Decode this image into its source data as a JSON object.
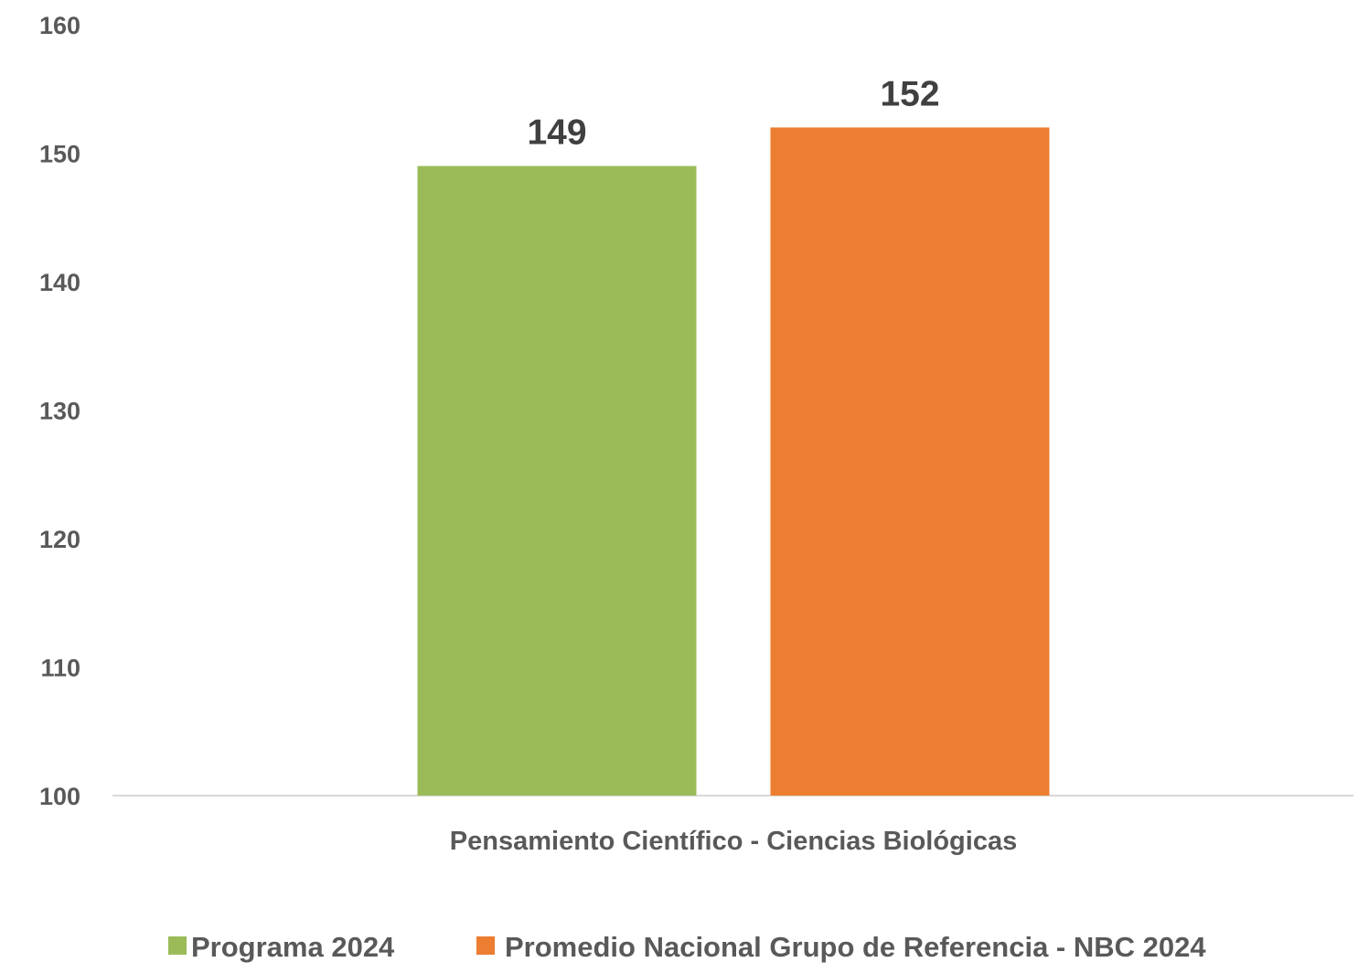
{
  "chart_data": {
    "type": "bar",
    "categories": [
      "Pensamiento Científico - Ciencias Biológicas"
    ],
    "series": [
      {
        "name": "Programa 2024",
        "values": [
          149
        ],
        "color": "#9BBB59"
      },
      {
        "name": "Promedio Nacional Grupo de Referencia - NBC 2024",
        "values": [
          152
        ],
        "color": "#ED7D31"
      }
    ],
    "data_labels": [
      "149",
      "152"
    ],
    "ylim": [
      100,
      160
    ],
    "yticks": [
      100,
      110,
      120,
      130,
      140,
      150,
      160
    ],
    "grid": false,
    "legend_position": "bottom",
    "title": "",
    "xlabel": "",
    "ylabel": ""
  }
}
